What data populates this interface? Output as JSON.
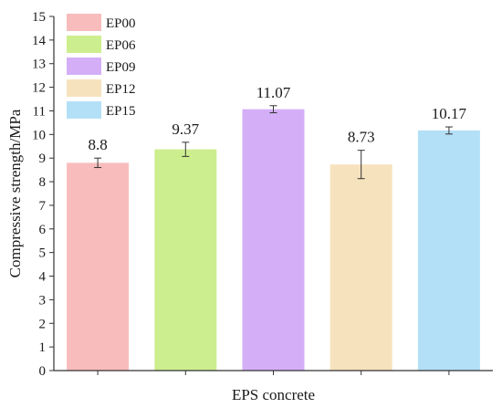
{
  "chart_data": {
    "type": "bar",
    "title": "",
    "xlabel": "EPS concrete",
    "ylabel": "Compressive strength/MPa",
    "ylim": [
      0,
      15
    ],
    "yticks": [
      0,
      1,
      2,
      3,
      4,
      5,
      6,
      7,
      8,
      9,
      10,
      11,
      12,
      13,
      14,
      15
    ],
    "grid": false,
    "legend_position": "top-left",
    "categories": [
      "EP00",
      "EP06",
      "EP09",
      "EP12",
      "EP15"
    ],
    "values": [
      8.8,
      9.37,
      11.07,
      8.73,
      10.17
    ],
    "value_labels": [
      "8.8",
      "9.37",
      "11.07",
      "8.73",
      "10.17"
    ],
    "error_bars": [
      0.2,
      0.3,
      0.15,
      0.6,
      0.15
    ],
    "colors": [
      "#f8bcbc",
      "#cdee8e",
      "#d4aff8",
      "#f6e3bd",
      "#b3e0f7"
    ]
  }
}
